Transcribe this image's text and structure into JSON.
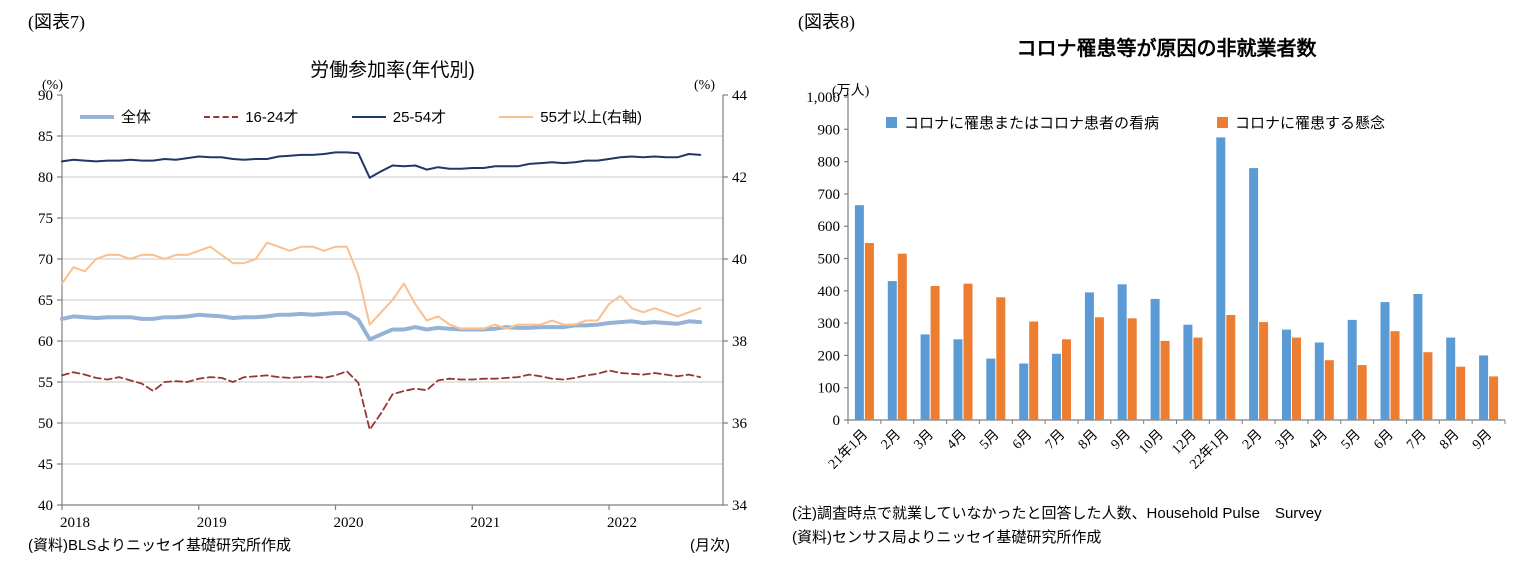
{
  "fig7": {
    "label": "(図表7)",
    "title": "労働参加率(年代別)",
    "left_axis_unit": "(%)",
    "right_axis_unit": "(%)",
    "x_axis_note": "(月次)",
    "source": "(資料)BLSよりニッセイ基礎研究所作成"
  },
  "fig8": {
    "label": "(図表8)",
    "title": "コロナ罹患等が原因の非就業者数",
    "axis_unit": "(万人)",
    "note": "(注)調査時点で就業していなかったと回答した人数、Household Pulse　Survey",
    "source": "(資料)センサス局よりニッセイ基礎研究所作成"
  },
  "chart_data": [
    {
      "type": "line",
      "title": "労働参加率(年代別)",
      "x_start": "2018-01",
      "x_frequency": "monthly",
      "x_labels": [
        "2018",
        "2019",
        "2020",
        "2021",
        "2022"
      ],
      "x_label_positions": [
        0,
        12,
        24,
        36,
        48
      ],
      "x_total_months": 59,
      "left_ylim": [
        40,
        90
      ],
      "left_yticks": [
        40,
        45,
        50,
        55,
        60,
        65,
        70,
        75,
        80,
        85,
        90
      ],
      "right_ylim": [
        34,
        44
      ],
      "right_yticks": [
        34,
        36,
        38,
        40,
        42,
        44
      ],
      "grid": true,
      "grid_color": "#C9C9C9",
      "axis_color": "#7F7F7F",
      "legend_position": "top",
      "series": [
        {
          "name": "全体",
          "axis": "left",
          "color": "#95B3D7",
          "width": 4,
          "dash": null,
          "values": [
            62.7,
            63.0,
            62.9,
            62.8,
            62.9,
            62.9,
            62.9,
            62.7,
            62.7,
            62.9,
            62.9,
            63.0,
            63.2,
            63.1,
            63.0,
            62.8,
            62.9,
            62.9,
            63.0,
            63.2,
            63.2,
            63.3,
            63.2,
            63.3,
            63.4,
            63.4,
            62.6,
            60.2,
            60.8,
            61.4,
            61.4,
            61.7,
            61.4,
            61.6,
            61.5,
            61.4,
            61.4,
            61.4,
            61.5,
            61.7,
            61.6,
            61.6,
            61.7,
            61.7,
            61.7,
            61.9,
            61.9,
            62.0,
            62.2,
            62.3,
            62.4,
            62.2,
            62.3,
            62.2,
            62.1,
            62.4,
            62.3
          ]
        },
        {
          "name": "16-24才",
          "axis": "left",
          "color": "#953735",
          "width": 1.8,
          "dash": "7,4",
          "values": [
            55.8,
            56.2,
            55.9,
            55.5,
            55.3,
            55.6,
            55.2,
            54.8,
            53.9,
            55.0,
            55.1,
            55.0,
            55.4,
            55.6,
            55.5,
            55.0,
            55.6,
            55.7,
            55.8,
            55.6,
            55.5,
            55.6,
            55.7,
            55.5,
            55.8,
            56.3,
            54.9,
            49.2,
            51.2,
            53.5,
            53.9,
            54.2,
            54.0,
            55.2,
            55.4,
            55.3,
            55.3,
            55.4,
            55.4,
            55.5,
            55.6,
            55.9,
            55.7,
            55.4,
            55.3,
            55.5,
            55.8,
            56.0,
            56.4,
            56.1,
            56.0,
            55.9,
            56.1,
            55.9,
            55.7,
            55.9,
            55.6
          ]
        },
        {
          "name": "25-54才",
          "axis": "left",
          "color": "#1F3864",
          "width": 2,
          "dash": null,
          "values": [
            81.9,
            82.1,
            82.0,
            81.9,
            82.0,
            82.0,
            82.1,
            82.0,
            82.0,
            82.2,
            82.1,
            82.3,
            82.5,
            82.4,
            82.4,
            82.2,
            82.1,
            82.2,
            82.2,
            82.5,
            82.6,
            82.7,
            82.7,
            82.8,
            83.0,
            83.0,
            82.9,
            79.9,
            80.7,
            81.4,
            81.3,
            81.4,
            80.9,
            81.2,
            81.0,
            81.0,
            81.1,
            81.1,
            81.3,
            81.3,
            81.3,
            81.6,
            81.7,
            81.8,
            81.7,
            81.8,
            82.0,
            82.0,
            82.2,
            82.4,
            82.5,
            82.4,
            82.5,
            82.4,
            82.4,
            82.8,
            82.7
          ]
        },
        {
          "name": "55才以上(右軸)",
          "axis": "right",
          "color": "#FAC090",
          "width": 2,
          "dash": null,
          "values": [
            39.4,
            39.8,
            39.7,
            40.0,
            40.1,
            40.1,
            40.0,
            40.1,
            40.1,
            40.0,
            40.1,
            40.1,
            40.2,
            40.3,
            40.1,
            39.9,
            39.9,
            40.0,
            40.4,
            40.3,
            40.2,
            40.3,
            40.3,
            40.2,
            40.3,
            40.3,
            39.6,
            38.4,
            38.7,
            39.0,
            39.4,
            38.9,
            38.5,
            38.6,
            38.4,
            38.3,
            38.3,
            38.3,
            38.4,
            38.3,
            38.4,
            38.4,
            38.4,
            38.5,
            38.4,
            38.4,
            38.5,
            38.5,
            38.9,
            39.1,
            38.8,
            38.7,
            38.8,
            38.7,
            38.6,
            38.7,
            38.8
          ]
        }
      ]
    },
    {
      "type": "bar",
      "title": "コロナ罹患等が原因の非就業者数",
      "categories": [
        "21年1月",
        "2月",
        "3月",
        "4月",
        "5月",
        "6月",
        "7月",
        "8月",
        "9月",
        "10月",
        "12月",
        "22年1月",
        "2月",
        "3月",
        "4月",
        "5月",
        "6月",
        "7月",
        "8月",
        "9月"
      ],
      "ylim": [
        0,
        1000
      ],
      "yticks": [
        0,
        100,
        200,
        300,
        400,
        500,
        600,
        700,
        800,
        900,
        1000
      ],
      "grid": false,
      "axis_color": "#7F7F7F",
      "legend_position": "top",
      "series": [
        {
          "name": "コロナに罹患またはコロナ患者の看病",
          "color": "#5B9BD5",
          "values": [
            665,
            430,
            265,
            250,
            190,
            175,
            205,
            395,
            420,
            375,
            295,
            875,
            780,
            280,
            240,
            310,
            365,
            390,
            255,
            200
          ]
        },
        {
          "name": "コロナに罹患する懸念",
          "color": "#ED7D31",
          "values": [
            548,
            515,
            415,
            422,
            380,
            305,
            250,
            318,
            315,
            245,
            255,
            325,
            303,
            255,
            185,
            170,
            275,
            210,
            165,
            135
          ]
        }
      ]
    }
  ]
}
